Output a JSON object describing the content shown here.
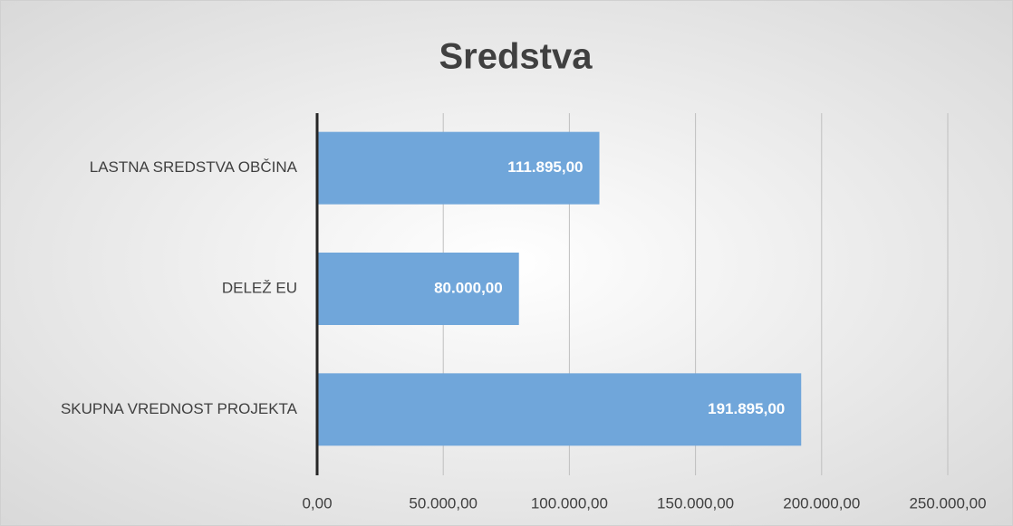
{
  "chart_data": {
    "type": "bar",
    "orientation": "horizontal",
    "title": "Sredstva",
    "categories": [
      "LASTNA SREDSTVA OBČINA",
      "DELEŽ EU",
      "SKUPNA VREDNOST PROJEKTA"
    ],
    "values": [
      111895,
      80000,
      191895
    ],
    "value_labels": [
      "111.895,00",
      "80.000,00",
      "191.895,00"
    ],
    "color": "#70a6da",
    "xlim": [
      0,
      250000
    ],
    "xticks": [
      {
        "value": 0,
        "label": "0,00"
      },
      {
        "value": 50000,
        "label": "50.000,00"
      },
      {
        "value": 100000,
        "label": "100.000,00"
      },
      {
        "value": 150000,
        "label": "150.000,00"
      },
      {
        "value": 200000,
        "label": "200.000,00"
      },
      {
        "value": 250000,
        "label": "250.000,00"
      }
    ],
    "grid": true
  }
}
